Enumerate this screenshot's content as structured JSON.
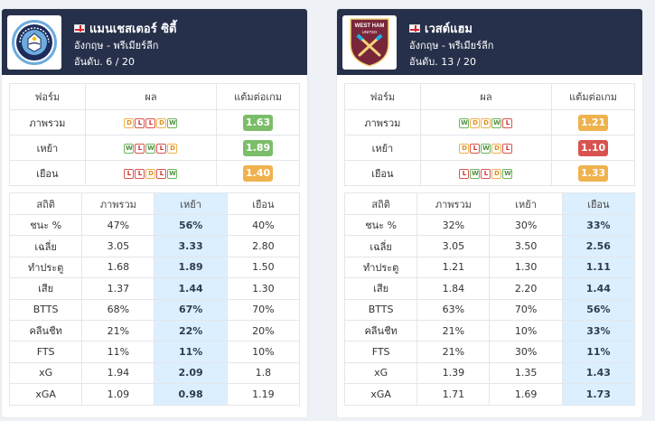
{
  "teams": [
    {
      "name": "แมนเชสเตอร์ ซิตี้",
      "league": "อังกฤษ - พรีเมียร์ลีก",
      "rank": "อันดับ. 6 / 20",
      "logo": "manchester-city-crest",
      "form_headers": [
        "ฟอร์ม",
        "ผล",
        "แต้มต่อเกม"
      ],
      "form_rows": [
        {
          "label": "ภาพรวม",
          "results": [
            "D",
            "L",
            "L",
            "D",
            "W"
          ],
          "ppg": "1.63",
          "ppg_color": "#7cbd6a"
        },
        {
          "label": "เหย้า",
          "results": [
            "W",
            "L",
            "W",
            "L",
            "D"
          ],
          "ppg": "1.89",
          "ppg_color": "#7cbd6a"
        },
        {
          "label": "เยือน",
          "results": [
            "L",
            "L",
            "D",
            "L",
            "W"
          ],
          "ppg": "1.40",
          "ppg_color": "#efb24d"
        }
      ],
      "stat_headers": [
        "สถิติ",
        "ภาพรวม",
        "เหย้า",
        "เยือน"
      ],
      "highlight_col": 2,
      "stat_rows": [
        {
          "label": "ชนะ %",
          "values": [
            "47%",
            "56%",
            "40%"
          ]
        },
        {
          "label": "เฉลี่ย",
          "values": [
            "3.05",
            "3.33",
            "2.80"
          ]
        },
        {
          "label": "ทำประตู",
          "values": [
            "1.68",
            "1.89",
            "1.50"
          ]
        },
        {
          "label": "เสีย",
          "values": [
            "1.37",
            "1.44",
            "1.30"
          ]
        },
        {
          "label": "BTTS",
          "values": [
            "68%",
            "67%",
            "70%"
          ]
        },
        {
          "label": "คลีนชีท",
          "values": [
            "21%",
            "22%",
            "20%"
          ]
        },
        {
          "label": "FTS",
          "values": [
            "11%",
            "11%",
            "10%"
          ]
        },
        {
          "label": "xG",
          "values": [
            "1.94",
            "2.09",
            "1.8"
          ]
        },
        {
          "label": "xGA",
          "values": [
            "1.09",
            "0.98",
            "1.19"
          ]
        }
      ]
    },
    {
      "name": "เวสต์แฮม",
      "league": "อังกฤษ - พรีเมียร์ลีก",
      "rank": "อันดับ. 13 / 20",
      "logo": "west-ham-crest",
      "form_headers": [
        "ฟอร์ม",
        "ผล",
        "แต้มต่อเกม"
      ],
      "form_rows": [
        {
          "label": "ภาพรวม",
          "results": [
            "W",
            "D",
            "D",
            "W",
            "L"
          ],
          "ppg": "1.21",
          "ppg_color": "#efb24d"
        },
        {
          "label": "เหย้า",
          "results": [
            "D",
            "L",
            "W",
            "D",
            "L"
          ],
          "ppg": "1.10",
          "ppg_color": "#d9534f"
        },
        {
          "label": "เยือน",
          "results": [
            "L",
            "W",
            "L",
            "D",
            "W"
          ],
          "ppg": "1.33",
          "ppg_color": "#efb24d"
        }
      ],
      "stat_headers": [
        "สถิติ",
        "ภาพรวม",
        "เหย้า",
        "เยือน"
      ],
      "highlight_col": 3,
      "stat_rows": [
        {
          "label": "ชนะ %",
          "values": [
            "32%",
            "30%",
            "33%"
          ]
        },
        {
          "label": "เฉลี่ย",
          "values": [
            "3.05",
            "3.50",
            "2.56"
          ]
        },
        {
          "label": "ทำประตู",
          "values": [
            "1.21",
            "1.30",
            "1.11"
          ]
        },
        {
          "label": "เสีย",
          "values": [
            "1.84",
            "2.20",
            "1.44"
          ]
        },
        {
          "label": "BTTS",
          "values": [
            "63%",
            "70%",
            "56%"
          ]
        },
        {
          "label": "คลีนชีท",
          "values": [
            "21%",
            "10%",
            "33%"
          ]
        },
        {
          "label": "FTS",
          "values": [
            "21%",
            "30%",
            "11%"
          ]
        },
        {
          "label": "xG",
          "values": [
            "1.39",
            "1.35",
            "1.43"
          ]
        },
        {
          "label": "xGA",
          "values": [
            "1.71",
            "1.69",
            "1.73"
          ]
        }
      ]
    }
  ]
}
